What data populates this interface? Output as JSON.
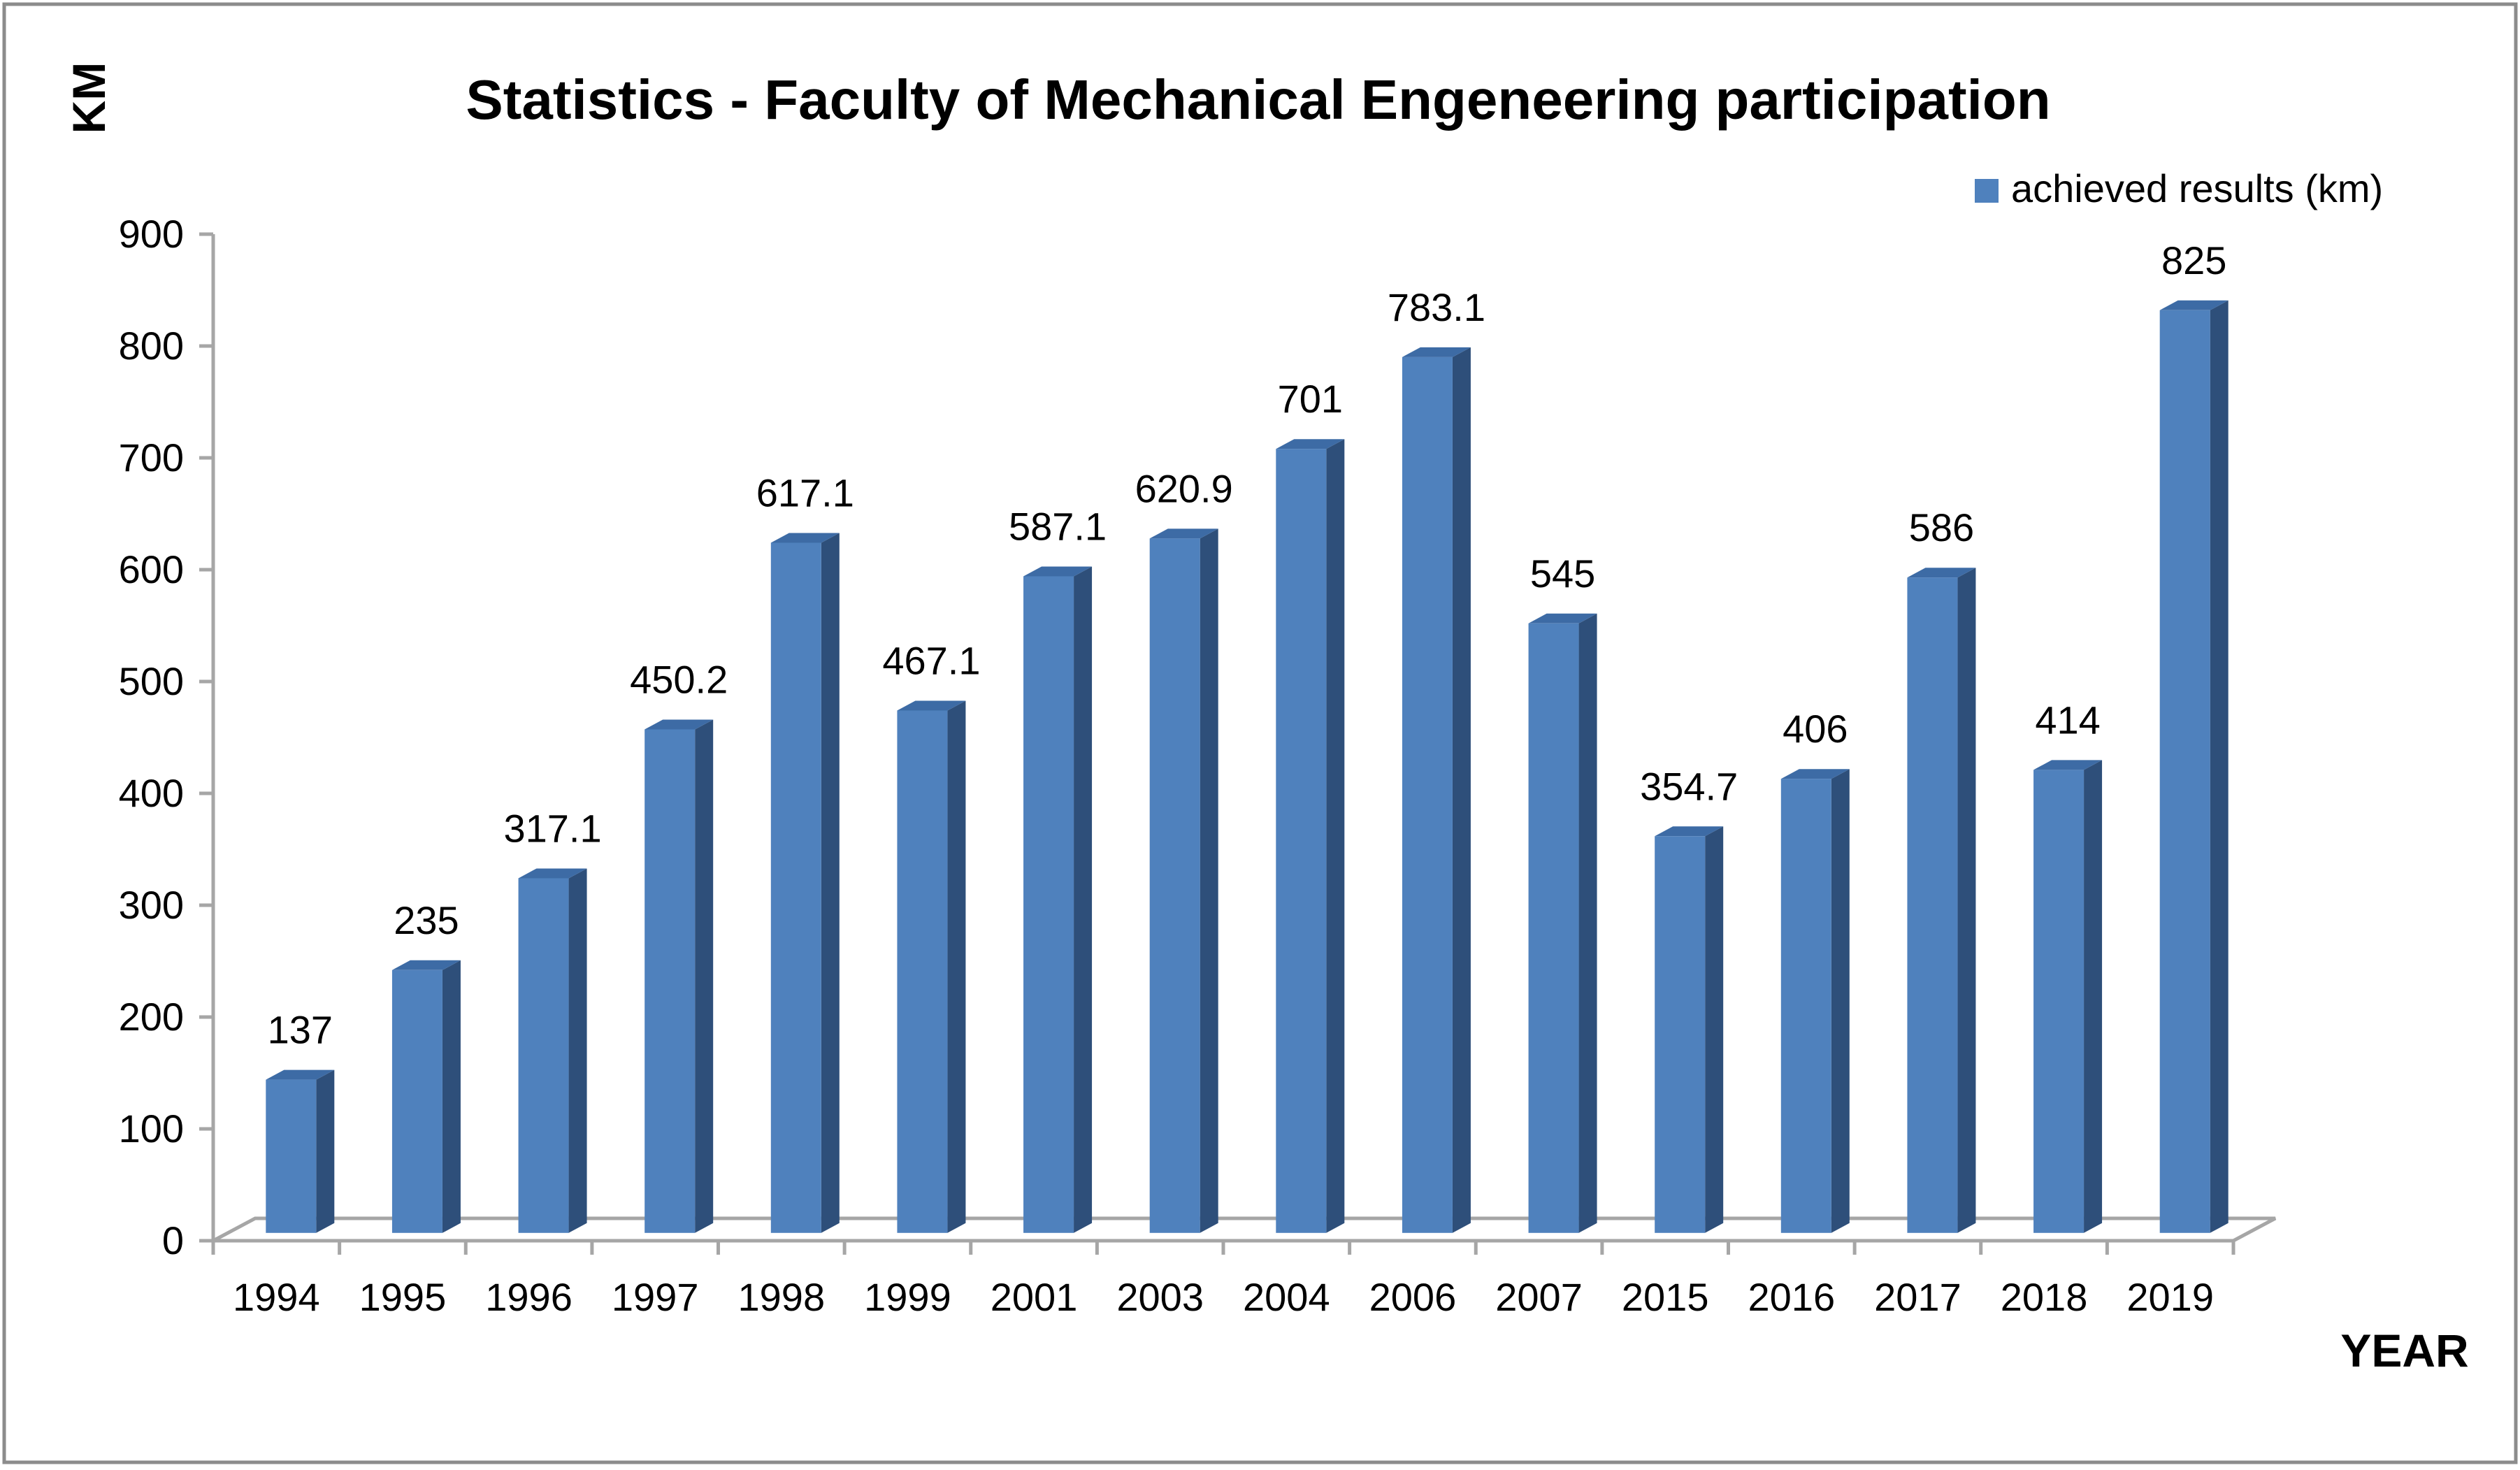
{
  "chart_data": {
    "type": "bar",
    "style": "3d-column",
    "title": "Statistics - Faculty of Mechanical Engeneering participation",
    "xlabel": "YEAR",
    "ylabel": "KM",
    "categories": [
      "1994",
      "1995",
      "1996",
      "1997",
      "1998",
      "1999",
      "2001",
      "2003",
      "2004",
      "2006",
      "2007",
      "2015",
      "2016",
      "2017",
      "2018",
      "2019"
    ],
    "series": [
      {
        "name": "achieved results (km)",
        "values": [
          137,
          235,
          317.1,
          450.2,
          617.1,
          467.1,
          587.1,
          620.9,
          701,
          783.1,
          545,
          354.7,
          406,
          586,
          414,
          825
        ],
        "labels": [
          "137",
          "235",
          "317.1",
          "450.2",
          "617.1",
          "467.1",
          "587.1",
          "620.9",
          "701",
          "783.1",
          "545",
          "354.7",
          "406",
          "586",
          "414",
          "825"
        ]
      }
    ],
    "ylim": [
      0,
      900
    ],
    "yticks": [
      0,
      100,
      200,
      300,
      400,
      500,
      600,
      700,
      800,
      900
    ],
    "grid": false,
    "legend_position": "top-right",
    "colors": {
      "bar_front": "#4F81BD",
      "bar_side": "#2E4F7A",
      "bar_top": "#3D6BA5",
      "axis": "#A6A6A6",
      "frame": "#8C8C8C"
    }
  }
}
